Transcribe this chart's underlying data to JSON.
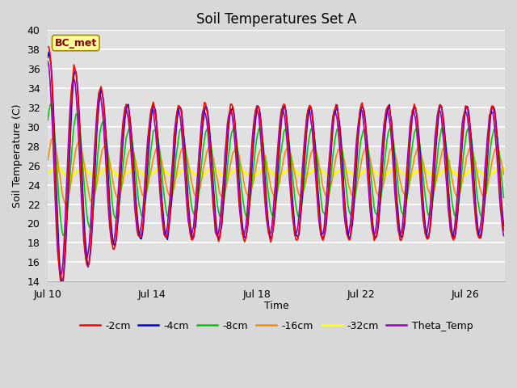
{
  "title": "Soil Temperatures Set A",
  "xlabel": "Time",
  "ylabel": "Soil Temperature (C)",
  "ylim": [
    14,
    40
  ],
  "xlim_days": [
    0,
    17.5
  ],
  "x_tick_labels": [
    "Jul 10",
    "Jul 14",
    "Jul 18",
    "Jul 22",
    "Jul 26"
  ],
  "x_tick_positions": [
    0,
    4,
    8,
    12,
    16
  ],
  "background_color": "#d8d8d8",
  "plot_bg_color": "#e0e0e0",
  "grid_color": "#ffffff",
  "series_colors": {
    "-2cm": "#ff0000",
    "-4cm": "#0000dd",
    "-8cm": "#00cc00",
    "-16cm": "#ff8800",
    "-32cm": "#ffff00",
    "Theta_Temp": "#9900cc"
  },
  "series_linewidths": {
    "-2cm": 1.2,
    "-4cm": 1.2,
    "-8cm": 1.2,
    "-16cm": 1.2,
    "-32cm": 1.8,
    "Theta_Temp": 1.2
  },
  "annotation_text": "BC_met",
  "title_fontsize": 12,
  "axis_label_fontsize": 9,
  "tick_fontsize": 9,
  "legend_fontsize": 9
}
